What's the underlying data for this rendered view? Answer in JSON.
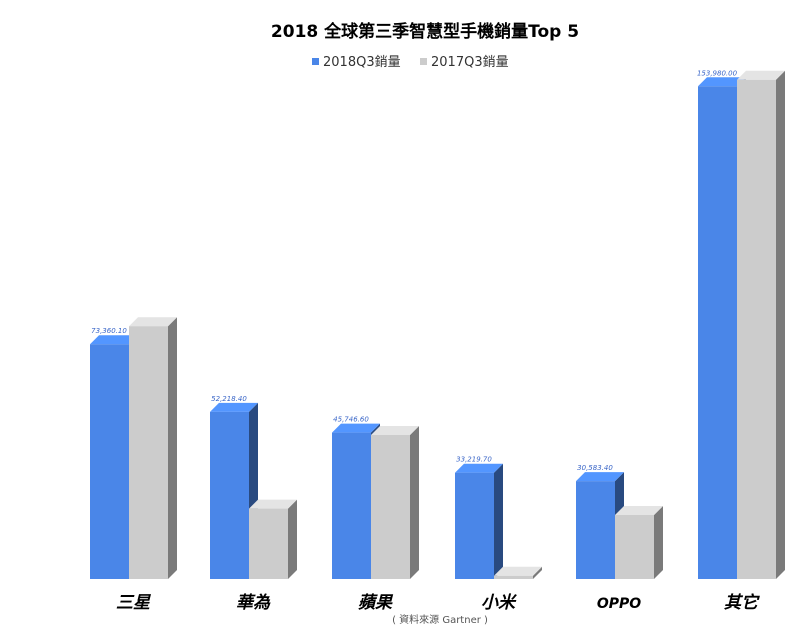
{
  "chart_data": {
    "type": "bar",
    "title": "2018 全球第三季智慧型手機銷量Top 5",
    "categories": [
      "三星",
      "華為",
      "蘋果",
      "小米",
      "OPPO",
      "其它"
    ],
    "series": [
      {
        "name": "2018Q3銷量",
        "color": "#4a86e8",
        "values": [
          73360.1,
          52218.4,
          45746.6,
          33219.7,
          30583.4,
          153980.0
        ],
        "labels": [
          "73,360.10",
          "52,218.40",
          "45,746.60",
          "33,219.70",
          "30,583.40",
          "153,980.00"
        ]
      },
      {
        "name": "2017Q3銷量",
        "color": "#cccccc",
        "values": [
          79000,
          22000,
          45000,
          1000,
          20000,
          156000
        ]
      }
    ],
    "ylim": [
      0,
      160000
    ],
    "grid": false,
    "legend": "top-center",
    "source": "( 資料來源 Gartner )"
  }
}
